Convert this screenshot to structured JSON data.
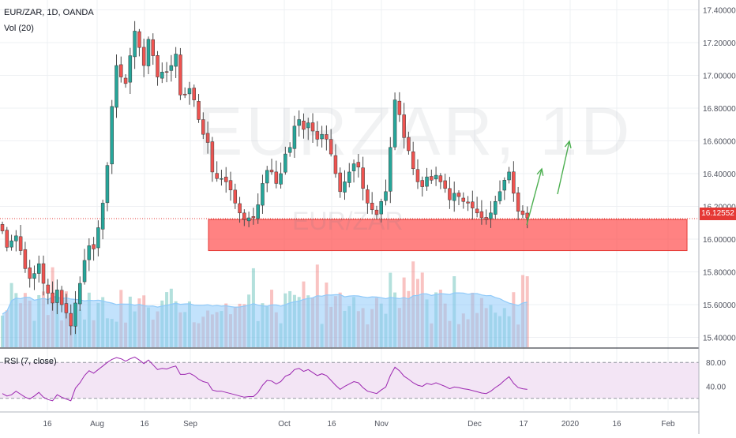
{
  "header": {
    "symbol_title": "EUR/ZAR, 1D, OANDA",
    "volume_label": "Vol (20)",
    "watermark_main": "EURZAR, 1D",
    "watermark_sub": "EUR/ZAR",
    "last_price": "16.12552"
  },
  "rsi": {
    "label": "RSI (7, close)",
    "upper_band": 80,
    "lower_band": 20,
    "y_ticks": [
      "80.00",
      "40.00"
    ]
  },
  "colors": {
    "up_candle": "#26a69a",
    "down_candle": "#ef5350",
    "zone_fill": "#ff6b6b",
    "zone_border": "#e53935",
    "arrow": "#4caf50",
    "volume_ma": "#90caf9",
    "rsi_line": "#9c27b0",
    "rsi_band": "#f3e5f5",
    "last_price_line": "#e53935",
    "grid": "#eef0f3"
  },
  "chart_data": {
    "type": "candlestick",
    "y_axis_ticks": [
      "17.40000",
      "17.20000",
      "17.00000",
      "16.80000",
      "16.60000",
      "16.40000",
      "16.20000",
      "16.00000",
      "15.80000",
      "15.60000",
      "15.40000"
    ],
    "ylim": [
      15.34,
      17.46
    ],
    "x_axis_ticks": [
      "16",
      "Aug",
      "16",
      "Sep",
      "Oct",
      "16",
      "Nov",
      "Dec",
      "17",
      "2020",
      "16",
      "Feb"
    ],
    "candles_close": [
      16.05,
      15.95,
      15.99,
      16.02,
      15.93,
      15.82,
      15.76,
      15.79,
      15.85,
      15.73,
      15.67,
      15.61,
      15.69,
      15.6,
      15.55,
      15.47,
      15.61,
      15.73,
      15.87,
      15.96,
      15.94,
      16.07,
      16.22,
      16.45,
      16.81,
      17.06,
      16.99,
      16.95,
      17.12,
      17.27,
      17.17,
      17.06,
      17.22,
      17.12,
      16.99,
      17.02,
      17.02,
      17.06,
      17.13,
      16.88,
      16.88,
      16.92,
      16.85,
      16.73,
      16.64,
      16.59,
      16.41,
      16.37,
      16.37,
      16.35,
      16.3,
      16.22,
      16.16,
      16.12,
      16.13,
      16.13,
      16.21,
      16.34,
      16.42,
      16.41,
      16.34,
      16.4,
      16.52,
      16.56,
      16.69,
      16.73,
      16.67,
      16.71,
      16.66,
      16.61,
      16.64,
      16.61,
      16.52,
      16.4,
      16.29,
      16.35,
      16.41,
      16.46,
      16.44,
      16.31,
      16.22,
      16.18,
      16.15,
      16.23,
      16.29,
      16.56,
      16.85,
      16.76,
      16.62,
      16.54,
      16.43,
      16.35,
      16.32,
      16.38,
      16.36,
      16.39,
      16.35,
      16.31,
      16.24,
      16.28,
      16.26,
      16.23,
      16.22,
      16.19,
      16.16,
      16.13,
      16.12,
      16.16,
      16.23,
      16.29,
      16.36,
      16.41,
      16.28,
      16.17,
      16.15,
      16.13
    ],
    "support_zone": {
      "low": 15.93,
      "high": 16.12
    },
    "rsi_values": [
      28,
      24,
      26,
      32,
      27,
      22,
      19,
      24,
      30,
      22,
      18,
      16,
      26,
      22,
      19,
      16,
      37,
      46,
      58,
      66,
      62,
      68,
      74,
      80,
      85,
      88,
      86,
      82,
      86,
      89,
      84,
      78,
      84,
      76,
      68,
      70,
      69,
      72,
      74,
      60,
      60,
      62,
      58,
      52,
      48,
      46,
      34,
      32,
      32,
      30,
      28,
      26,
      24,
      22,
      23,
      23,
      30,
      42,
      50,
      49,
      44,
      48,
      57,
      60,
      68,
      70,
      65,
      68,
      63,
      58,
      61,
      58,
      50,
      42,
      35,
      40,
      44,
      48,
      46,
      38,
      32,
      30,
      28,
      34,
      39,
      58,
      72,
      66,
      57,
      52,
      46,
      42,
      40,
      45,
      43,
      46,
      43,
      40,
      36,
      39,
      38,
      36,
      35,
      33,
      31,
      29,
      28,
      32,
      38,
      43,
      50,
      56,
      45,
      38,
      36,
      35
    ]
  }
}
